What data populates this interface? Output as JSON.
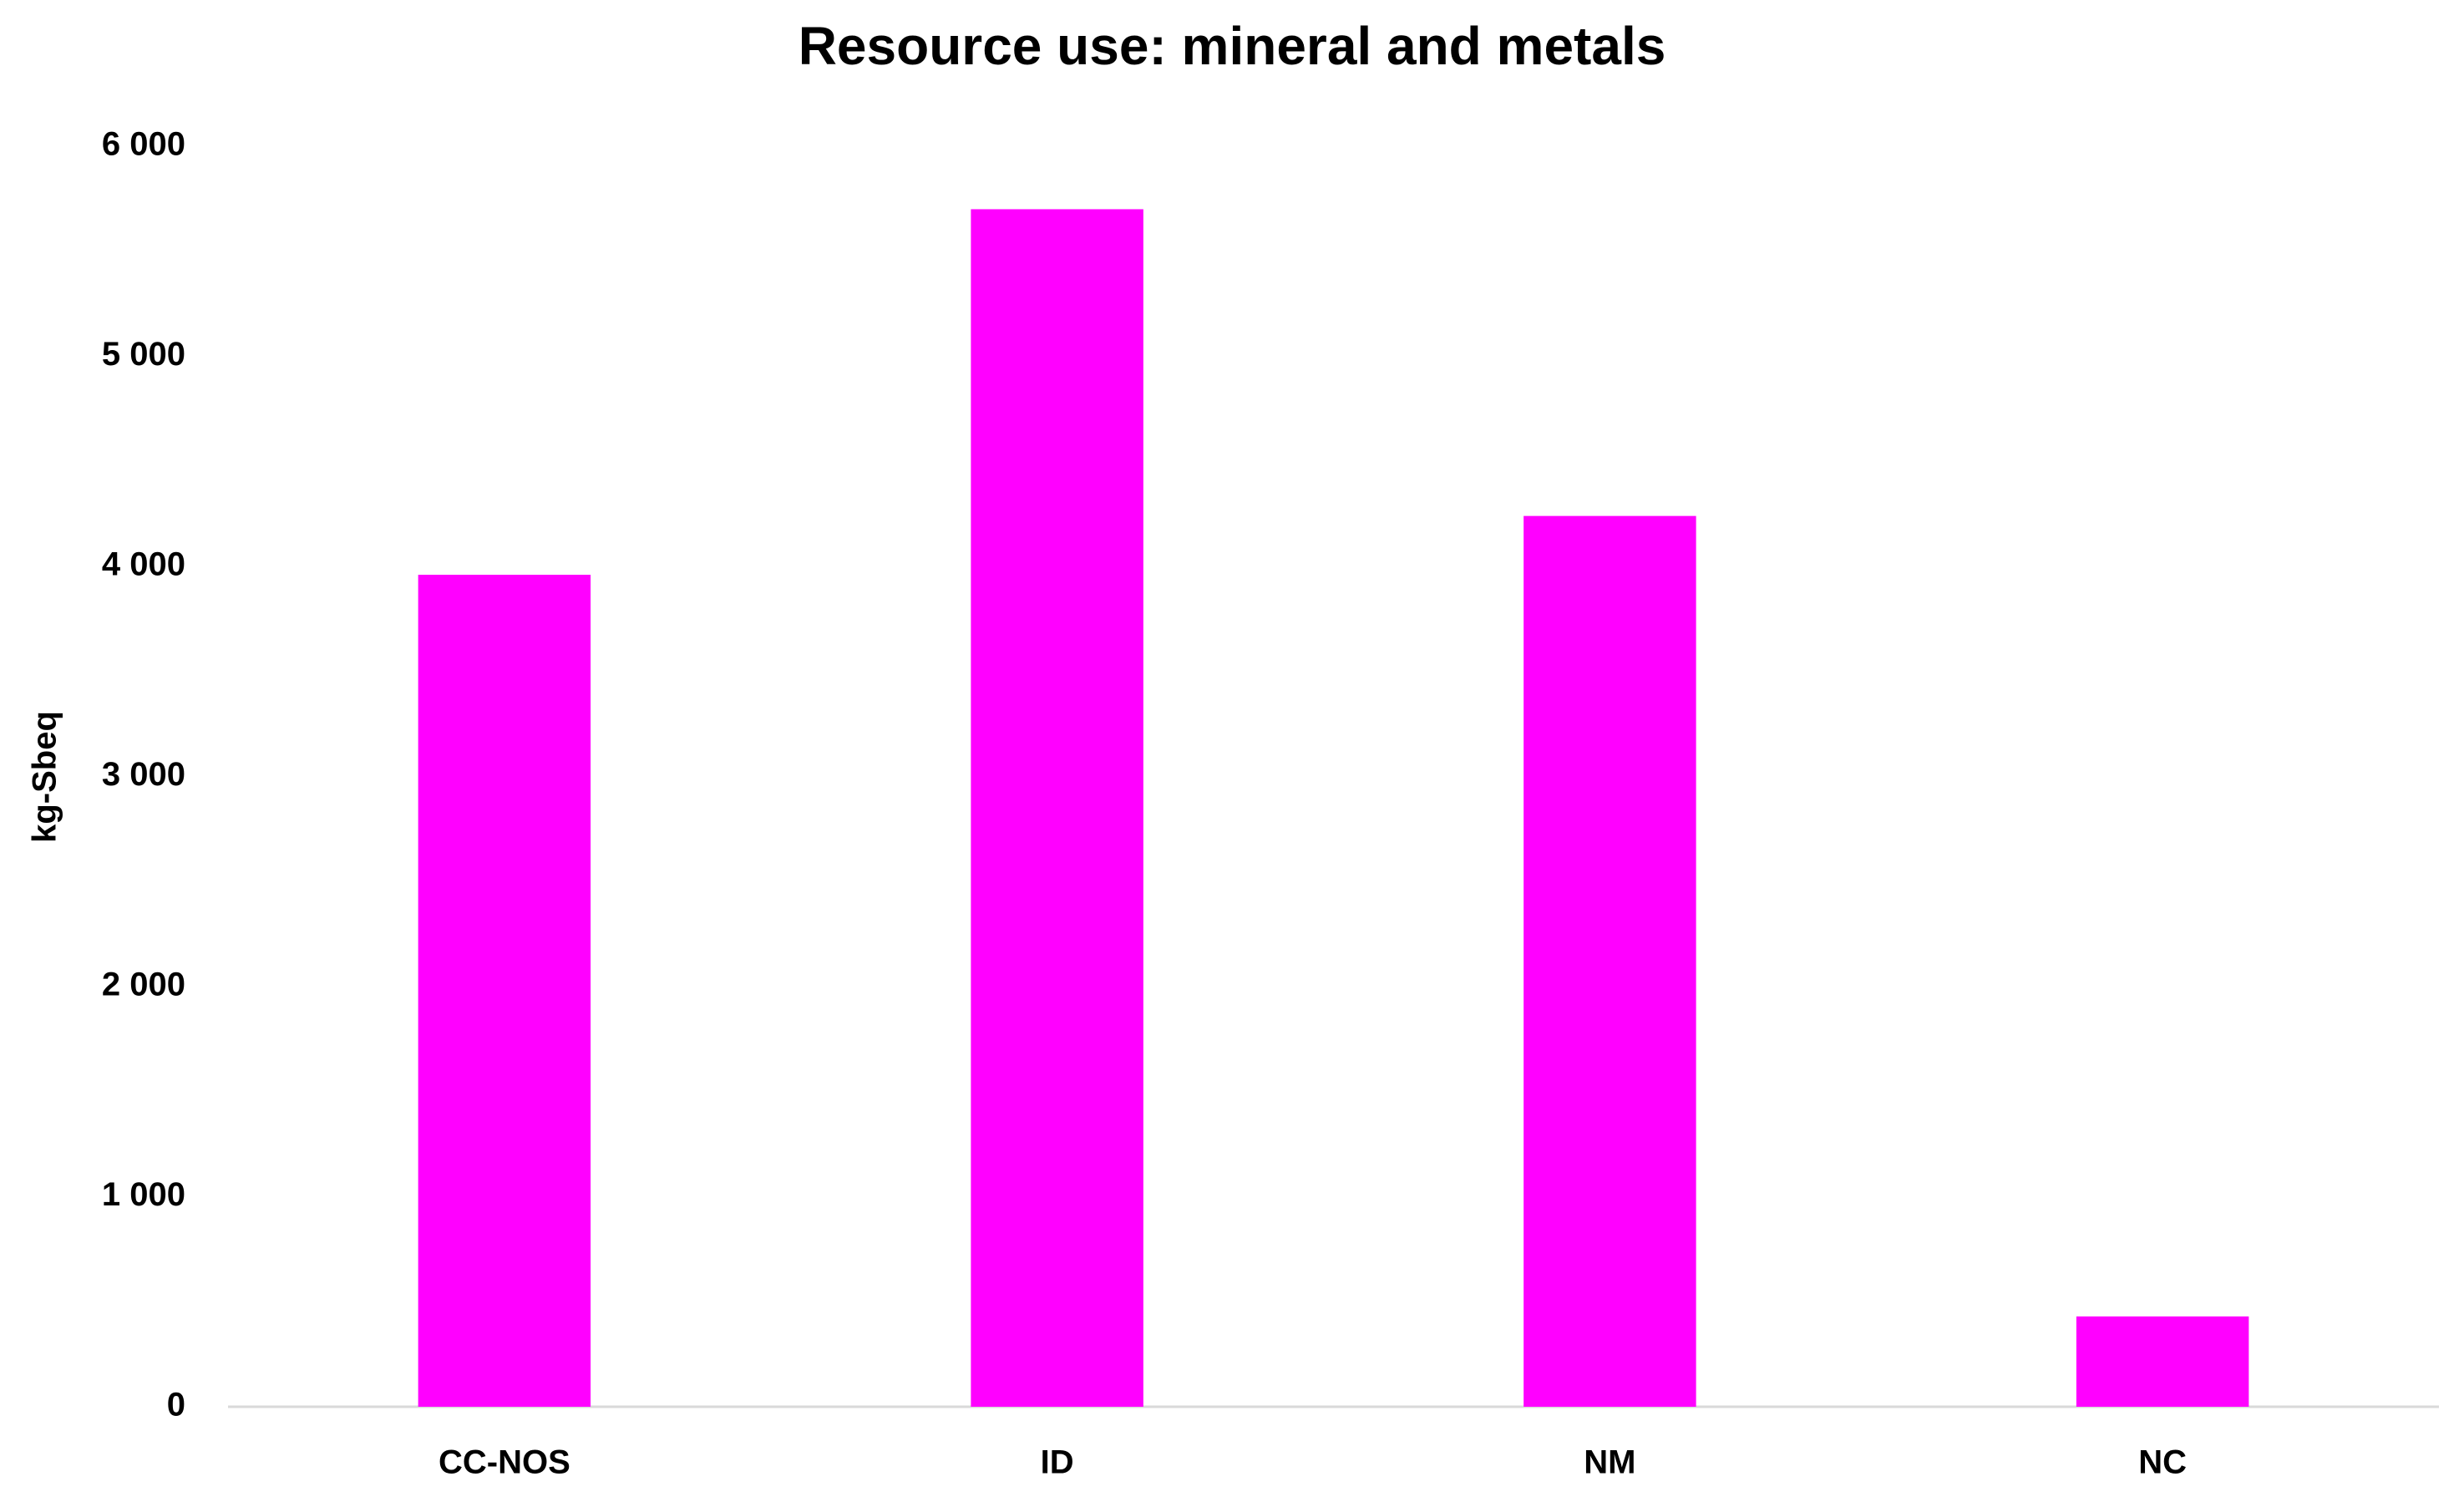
{
  "chart_data": {
    "type": "bar",
    "title": "Resource use: mineral and metals",
    "y_label": "kg-Sbeq",
    "categories": [
      "CC-NOS",
      "ID",
      "NM",
      "NC"
    ],
    "values": [
      3960,
      5700,
      4240,
      430
    ],
    "color": "#ff00ff",
    "ylim": [
      0,
      6000
    ],
    "yticks": [
      0,
      {
        "value": 1000,
        "label": "1 000"
      },
      {
        "value": 2000,
        "label": "2 000"
      },
      {
        "value": 3000,
        "label": "3 000"
      },
      {
        "value": 4000,
        "label": "4 000"
      },
      {
        "value": 5000,
        "label": "5 000"
      },
      {
        "value": 6000,
        "label": "6 000"
      }
    ],
    "grid": false
  }
}
